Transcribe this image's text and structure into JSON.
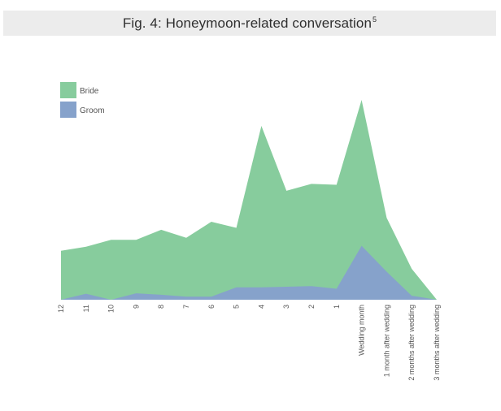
{
  "figure": {
    "title": "Fig. 4: Honeymoon-related conversation",
    "footnote_mark": "5"
  },
  "colors": {
    "bride": "#87cc9d",
    "groom": "#86a2cb",
    "title_bg": "#ececec"
  },
  "chart_data": {
    "type": "area",
    "title": "Fig. 4: Honeymoon-related conversation",
    "xlabel": "",
    "ylabel": "",
    "stacked": false,
    "y_axis_shown": false,
    "grid": false,
    "legend_position": "top-left",
    "ylim": [
      0,
      100
    ],
    "categories": [
      "12",
      "11",
      "10",
      "9",
      "8",
      "7",
      "6",
      "5",
      "4",
      "3",
      "2",
      "1",
      "Wedding month",
      "1 month after wedding",
      "2 months after wedding",
      "3 months after wedding"
    ],
    "series": [
      {
        "name": "Bride",
        "color": "#87cc9d",
        "values": [
          24.5,
          26.5,
          30,
          30,
          35,
          31,
          39,
          36,
          87,
          54.5,
          58,
          57.5,
          100,
          41,
          15.5,
          0
        ]
      },
      {
        "name": "Groom",
        "color": "#86a2cb",
        "values": [
          0,
          3,
          0,
          3.2,
          2.5,
          1.5,
          1.5,
          6.2,
          6.2,
          6.5,
          6.8,
          5.5,
          27,
          14,
          2,
          0
        ]
      }
    ]
  }
}
